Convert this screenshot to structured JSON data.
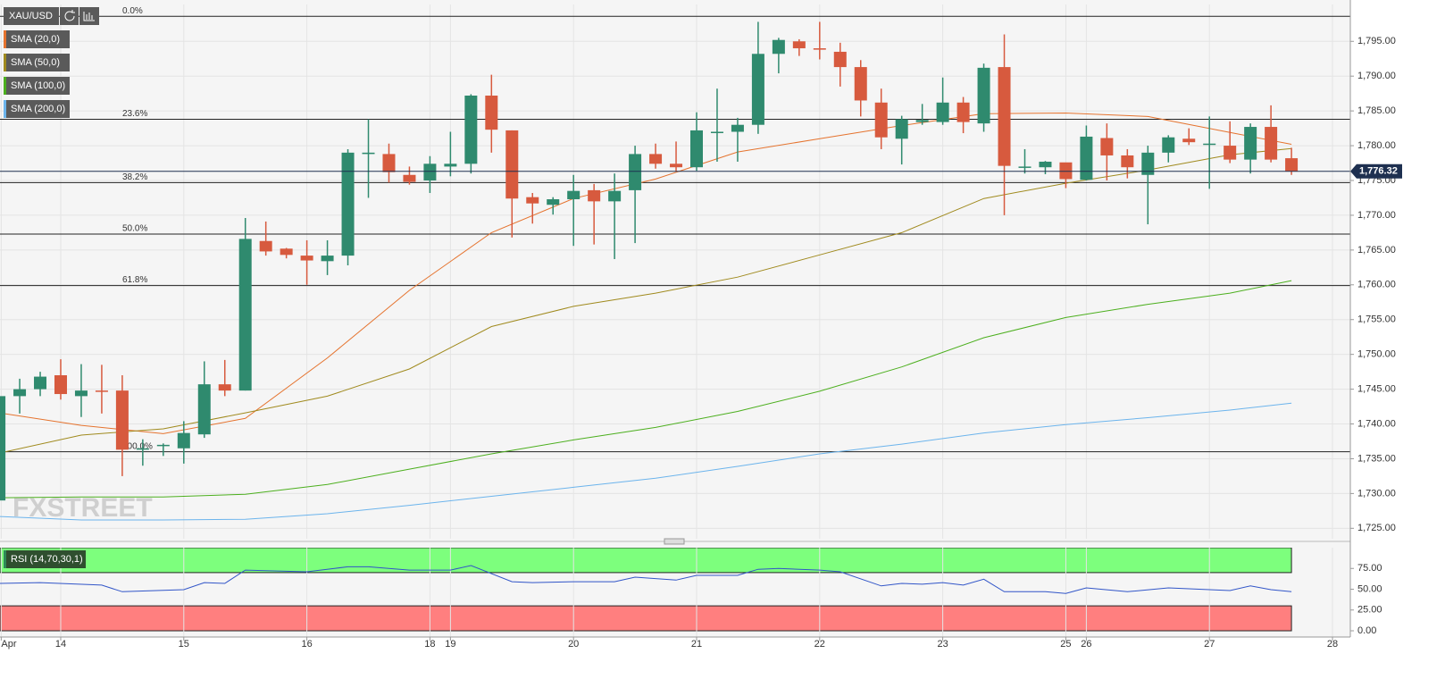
{
  "symbol": "XAU/USD",
  "watermark": "FXSTREET",
  "chart_data": [
    {
      "type": "candlestick",
      "x": [
        -1,
        0,
        1,
        2,
        3,
        4,
        5,
        6,
        7,
        8,
        9,
        10,
        11,
        12,
        13,
        14,
        15,
        16,
        17,
        18,
        19,
        20,
        21,
        22,
        23,
        24,
        25,
        26,
        27,
        28,
        29,
        30,
        31,
        32,
        33,
        34,
        35,
        36,
        37,
        38,
        39,
        40,
        41,
        42,
        43,
        44,
        45,
        46,
        47,
        48,
        49,
        50,
        51,
        52,
        53,
        54,
        55,
        56,
        57,
        58,
        59,
        60,
        61,
        62
      ],
      "open": [
        1729,
        1744,
        1745,
        1747,
        1744,
        1744.8,
        1744.8,
        1736.3,
        1737,
        1736.5,
        1738.5,
        1745.7,
        1744.8,
        1766.3,
        1765.2,
        1764.2,
        1763.4,
        1764.2,
        1778.8,
        1778.8,
        1775.8,
        1775,
        1777,
        1777.4,
        1787.2,
        1782.2,
        1772.6,
        1771.5,
        1772.3,
        1773.6,
        1772,
        1773.6,
        1778.8,
        1777.4,
        1776.9,
        1782,
        1782,
        1783,
        1793.2,
        1795,
        1794,
        1793.5,
        1791.3,
        1786.2,
        1781,
        1783.4,
        1783.4,
        1786.2,
        1783.2,
        1791.3,
        1777,
        1776.9,
        1777.6,
        1775.1,
        1781.1,
        1778.6,
        1775.8,
        1779,
        1781,
        1780.3,
        1780,
        1778,
        1782.7,
        1778.2
      ],
      "high": [
        1744,
        1746.5,
        1747.5,
        1749.3,
        1748.6,
        1748.5,
        1747,
        1737.8,
        1737.2,
        1740.4,
        1749,
        1749.2,
        1769.6,
        1769.1,
        1765.3,
        1766.4,
        1766.4,
        1779.5,
        1783.8,
        1780.3,
        1777,
        1778.5,
        1782,
        1787.4,
        1790.2,
        1782.2,
        1773.2,
        1772.6,
        1775.8,
        1774.5,
        1776,
        1780,
        1780.3,
        1780.6,
        1784.8,
        1788.2,
        1784,
        1797.8,
        1795.5,
        1795.3,
        1797.8,
        1794.8,
        1792.3,
        1788.2,
        1784.3,
        1786,
        1789.8,
        1787,
        1791.8,
        1796,
        1779.5,
        1777.8,
        1777.5,
        1782.9,
        1783.2,
        1779.5,
        1780,
        1781.5,
        1782.5,
        1784.2,
        1783.5,
        1783.2,
        1785.8,
        1779.7
      ],
      "low": [
        1729,
        1741.5,
        1744,
        1743.5,
        1741,
        1741.5,
        1732.5,
        1734,
        1735.4,
        1734.3,
        1738,
        1744,
        1744.8,
        1764.2,
        1763.8,
        1760,
        1761.4,
        1762.8,
        1772.5,
        1774.7,
        1774.4,
        1773.2,
        1775.6,
        1776,
        1779,
        1766.8,
        1768.8,
        1770.1,
        1765.6,
        1765.8,
        1763.7,
        1766,
        1776.7,
        1776.3,
        1776.4,
        1777.7,
        1777.7,
        1781.7,
        1790.4,
        1792.9,
        1792.4,
        1788.5,
        1784.2,
        1779.5,
        1777.3,
        1783,
        1783,
        1781.8,
        1782,
        1770,
        1776,
        1775.9,
        1773.9,
        1775,
        1775,
        1775.3,
        1768.7,
        1777.6,
        1780.1,
        1773.8,
        1777.5,
        1776,
        1777.6,
        1775.8
      ],
      "close": [
        1744,
        1745,
        1746.8,
        1744.3,
        1744.8,
        1744.7,
        1736.3,
        1736.5,
        1737,
        1738.7,
        1745.7,
        1744.8,
        1766.6,
        1764.8,
        1764.3,
        1763.5,
        1764.2,
        1779,
        1779,
        1776.2,
        1774.8,
        1777.4,
        1777.4,
        1787.2,
        1782.3,
        1772.4,
        1771.7,
        1772.3,
        1773.5,
        1772,
        1773.5,
        1778.8,
        1777.4,
        1776.9,
        1782.2,
        1782,
        1783,
        1793.2,
        1795.2,
        1794,
        1793.8,
        1791.3,
        1786.5,
        1781.2,
        1783.8,
        1783.7,
        1786.2,
        1783.4,
        1791.2,
        1777.1,
        1777,
        1777.7,
        1775.2,
        1781.3,
        1778.6,
        1776.9,
        1779,
        1781.2,
        1780.5,
        1780.3,
        1778,
        1782.7,
        1778,
        1776.3
      ],
      "up_color": "#2f8a6e",
      "down_color": "#d75a3e",
      "xlim": [
        -0.96,
        64.87
      ],
      "ylim": [
        1723.5,
        1800.3
      ],
      "yticks": [
        {
          "value": 1725,
          "label": "1,725.00"
        },
        {
          "value": 1730,
          "label": "1,730.00"
        },
        {
          "value": 1735,
          "label": "1,735.00"
        },
        {
          "value": 1740,
          "label": "1,740.00"
        },
        {
          "value": 1745,
          "label": "1,745.00"
        },
        {
          "value": 1750,
          "label": "1,750.00"
        },
        {
          "value": 1755,
          "label": "1,755.00"
        },
        {
          "value": 1760,
          "label": "1,760.00"
        },
        {
          "value": 1765,
          "label": "1,765.00"
        },
        {
          "value": 1770,
          "label": "1,770.00"
        },
        {
          "value": 1775,
          "label": "1,775.00"
        },
        {
          "value": 1780,
          "label": "1,780.00"
        },
        {
          "value": 1785,
          "label": "1,785.00"
        },
        {
          "value": 1790,
          "label": "1,790.00"
        },
        {
          "value": 1795,
          "label": "1,795.00"
        }
      ],
      "grid": true,
      "lines": [
        {
          "name": "SMA (20,0)",
          "color": "#e5732e",
          "x": [
            -1,
            3,
            7,
            11,
            15,
            19,
            23,
            27,
            31,
            35,
            39,
            43,
            47,
            51,
            55,
            59,
            62
          ],
          "values": [
            1741.6,
            1739.8,
            1738.6,
            1740.8,
            1749.5,
            1759.2,
            1767.5,
            1772.4,
            1775.2,
            1779.1,
            1781,
            1782.9,
            1784.6,
            1784.7,
            1784.2,
            1781.9,
            1780.2
          ]
        },
        {
          "name": "SMA (50,0)",
          "color": "#a08a1e",
          "x": [
            -1,
            3,
            7,
            11,
            15,
            19,
            23,
            27,
            31,
            35,
            39,
            43,
            47,
            51,
            55,
            59,
            62
          ],
          "values": [
            1735.8,
            1738.4,
            1739.3,
            1741.6,
            1744,
            1747.9,
            1754,
            1756.9,
            1758.8,
            1761.1,
            1764.3,
            1767.5,
            1772.4,
            1774.6,
            1776.5,
            1778.7,
            1779.6
          ]
        },
        {
          "name": "SMA (100,0)",
          "color": "#4caf1e",
          "x": [
            -1,
            3,
            7,
            11,
            15,
            19,
            23,
            27,
            31,
            35,
            39,
            43,
            47,
            51,
            55,
            59,
            62
          ],
          "values": [
            1729.4,
            1729.5,
            1729.5,
            1729.9,
            1731.3,
            1733.5,
            1735.7,
            1737.7,
            1739.5,
            1741.8,
            1744.7,
            1748.2,
            1752.4,
            1755.3,
            1757.2,
            1758.8,
            1760.6
          ]
        },
        {
          "name": "SMA (200,0)",
          "color": "#6cb4ec",
          "x": [
            -1,
            3,
            7,
            11,
            15,
            19,
            23,
            27,
            31,
            35,
            39,
            43,
            47,
            51,
            55,
            59,
            62
          ],
          "values": [
            1726.7,
            1726.2,
            1726.2,
            1726.3,
            1727.1,
            1728.3,
            1729.6,
            1730.9,
            1732.2,
            1733.9,
            1735.7,
            1737.1,
            1738.7,
            1739.9,
            1740.9,
            1742,
            1743
          ]
        }
      ],
      "fib_levels": [
        {
          "label": "0.0%",
          "value": 1798.6
        },
        {
          "label": "23.6%",
          "value": 1783.8
        },
        {
          "label": "38.2%",
          "value": 1774.7
        },
        {
          "label": "50.0%",
          "value": 1767.3
        },
        {
          "label": "61.8%",
          "value": 1759.9
        },
        {
          "label": "100.0%",
          "value": 1736.0
        }
      ],
      "last_price": {
        "value": 1776.32,
        "label": "1,776.32",
        "color": "#1e3050"
      }
    },
    {
      "type": "line",
      "series": [
        {
          "name": "RSI (14,70,30,1)",
          "color": "#3155c8",
          "x": [
            -1,
            1,
            4,
            5,
            8,
            9,
            10,
            11,
            14,
            16,
            17,
            19,
            21,
            22,
            24,
            25,
            27,
            29,
            30,
            32,
            33,
            35,
            36,
            37,
            39,
            40,
            42,
            43,
            44,
            45,
            46,
            47,
            48,
            50,
            51,
            52,
            54,
            56,
            58,
            59,
            60,
            61,
            62
          ],
          "values": [
            57,
            58,
            55,
            47,
            49.5,
            58,
            57,
            73,
            71,
            77,
            77,
            73,
            73,
            78.5,
            59,
            58,
            59,
            59,
            64.5,
            61,
            66.7,
            66.7,
            74,
            75,
            73,
            71,
            54,
            57,
            56,
            58,
            55,
            62,
            47,
            47,
            45,
            51.6,
            47,
            51.6,
            49.5,
            48.4,
            54,
            49.5,
            47
          ]
        }
      ],
      "bands": [
        {
          "from": 70,
          "to": 100,
          "color": "#7dff7d"
        },
        {
          "from": 0,
          "to": 30,
          "color": "#ff7f7f"
        }
      ],
      "xlim": [
        -0.96,
        64.87
      ],
      "ylim": [
        -7.5,
        100
      ],
      "yticks": [
        {
          "value": 0,
          "label": "0.00"
        },
        {
          "value": 25,
          "label": "25.00"
        },
        {
          "value": 50,
          "label": "50.00"
        },
        {
          "value": 75,
          "label": "75.00"
        }
      ],
      "xticks": [
        {
          "value": -0.9,
          "label": "Apr"
        },
        {
          "value": 2,
          "label": "14"
        },
        {
          "value": 8,
          "label": "15"
        },
        {
          "value": 14,
          "label": "16"
        },
        {
          "value": 20,
          "label": "18"
        },
        {
          "value": 21,
          "label": "19"
        },
        {
          "value": 27,
          "label": "20"
        },
        {
          "value": 33,
          "label": "21"
        },
        {
          "value": 39,
          "label": "22"
        },
        {
          "value": 45,
          "label": "23"
        },
        {
          "value": 51,
          "label": "25"
        },
        {
          "value": 52,
          "label": "26"
        },
        {
          "value": 58,
          "label": "27"
        },
        {
          "value": 64,
          "label": "28"
        }
      ]
    }
  ]
}
